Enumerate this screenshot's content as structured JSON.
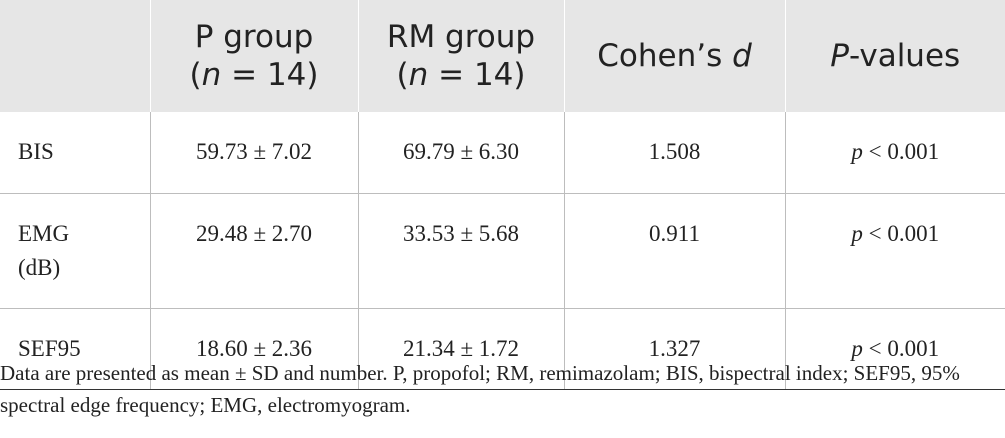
{
  "table": {
    "headers": [
      {
        "line1": "",
        "line2": ""
      },
      {
        "line1": "P group",
        "n_prefix": "(",
        "n_var": "n",
        "n_rest": " = 14)"
      },
      {
        "line1": "RM group",
        "n_prefix": "(",
        "n_var": "n",
        "n_rest": " = 14)"
      },
      {
        "plain": "Cohen’s ",
        "italic": "d"
      },
      {
        "italic": "P",
        "plain": "-values"
      }
    ],
    "rows": [
      {
        "label_line1": "BIS",
        "label_line2": "",
        "p_group": "59.73 ± 7.02",
        "rm_group": "69.79 ± 6.30",
        "cohens_d": "1.508",
        "p_var": "p",
        "p_value": " < 0.001"
      },
      {
        "label_line1": "EMG",
        "label_line2": "(dB)",
        "p_group": "29.48 ± 2.70",
        "rm_group": "33.53 ± 5.68",
        "cohens_d": "0.911",
        "p_var": "p",
        "p_value": " < 0.001"
      },
      {
        "label_line1": "SEF95",
        "label_line2": "",
        "p_group": "18.60 ± 2.36",
        "rm_group": "21.34 ± 1.72",
        "cohens_d": "1.327",
        "p_var": "p",
        "p_value": " < 0.001"
      }
    ]
  },
  "footnote": "Data are presented as mean ± SD and number. P, propofol; RM, remimazolam; BIS, bispectral index; SEF95, 95% spectral edge frequency; EMG, electromyogram.",
  "colors": {
    "header_bg": "#e6e6e6",
    "text": "#222222",
    "grid": "#bdbdbd"
  }
}
